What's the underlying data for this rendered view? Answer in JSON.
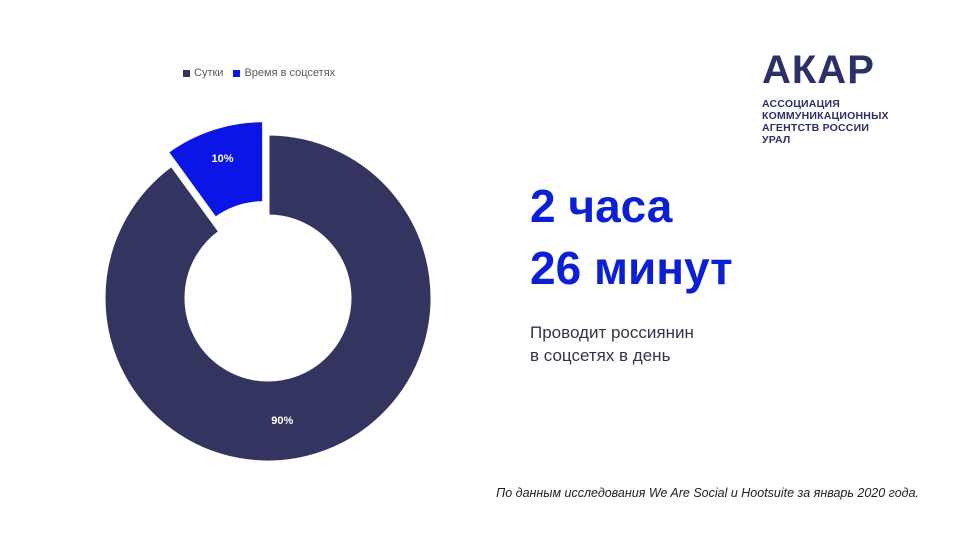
{
  "colors": {
    "sutki": "#333560",
    "socseti": "#0b16e6",
    "headline": "#0a1fd6",
    "logo": "#2b3168"
  },
  "chart_data": {
    "type": "pie",
    "variant": "donut",
    "legend_position": "top-left",
    "series": [
      {
        "name": "Сутки",
        "value": 90,
        "label": "90%",
        "color": "#333560",
        "exploded": false
      },
      {
        "name": "Время в соцсетях",
        "value": 10,
        "label": "10%",
        "color": "#0b16e6",
        "exploded": true
      }
    ]
  },
  "logo": {
    "mark": "АКАР",
    "lines": [
      "АССОЦИАЦИЯ",
      "КОММУНИКАЦИОННЫХ",
      "АГЕНТСТВ РОССИИ",
      "УРАЛ"
    ]
  },
  "headline": {
    "line1": "2 часа",
    "line2": "26 минут"
  },
  "subtext": {
    "line1": "Проводит россиянин",
    "line2": "в соцсетях в день"
  },
  "source": "По данным исследования We Are Social и Hootsuite за январь 2020 года."
}
